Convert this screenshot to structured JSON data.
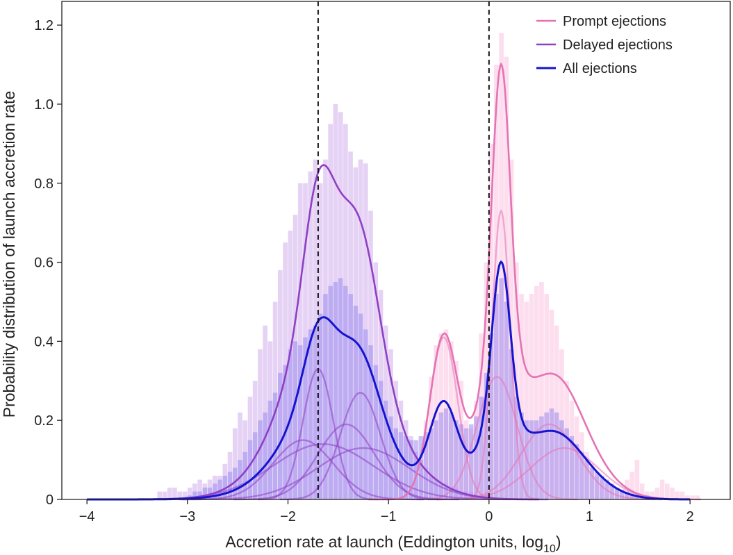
{
  "chart_data": {
    "type": "area",
    "xlabel": "Accretion rate at launch (Eddington units, log",
    "xlabel_sub": "10",
    "xlabel_close": ")",
    "ylabel": "Probability distribution of launch accretion rate",
    "xlim": [
      -4.25,
      2.4
    ],
    "ylim": [
      0,
      1.26
    ],
    "xticks": [
      -4,
      -3,
      -2,
      -1,
      0,
      1,
      2
    ],
    "xtick_labels": [
      "−4",
      "−3",
      "−2",
      "−1",
      "0",
      "1",
      "2"
    ],
    "yticks": [
      0,
      0.2,
      0.4,
      0.6,
      0.8,
      1.0,
      1.2
    ],
    "ytick_labels": [
      "0",
      "0.2",
      "0.4",
      "0.6",
      "0.8",
      "1.0",
      "1.2"
    ],
    "vlines": [
      -1.7,
      0
    ],
    "legend_position": "top-right",
    "colors": {
      "prompt": "#e573b4",
      "delayed": "#8e3fc4",
      "all": "#1414cf",
      "prompt_fill": "#fbd3e8",
      "delayed_fill": "#dcc3f0",
      "all_fill": "#9f8cf1"
    },
    "series": [
      {
        "name": "Prompt ejections",
        "color": "#e573b4",
        "components": [
          {
            "mu": -0.45,
            "sigma": 0.14,
            "amp": 0.41
          },
          {
            "mu": 0.12,
            "sigma": 0.09,
            "amp": 0.73
          },
          {
            "mu": 0.08,
            "sigma": 0.2,
            "amp": 0.31
          },
          {
            "mu": 0.6,
            "sigma": 0.28,
            "amp": 0.19
          },
          {
            "mu": 0.75,
            "sigma": 0.34,
            "amp": 0.13
          }
        ]
      },
      {
        "name": "Delayed ejections",
        "color": "#8e3fc4",
        "components": [
          {
            "mu": -1.7,
            "sigma": 0.15,
            "amp": 0.33
          },
          {
            "mu": -1.85,
            "sigma": 0.3,
            "amp": 0.15
          },
          {
            "mu": -1.65,
            "sigma": 0.5,
            "amp": 0.14
          },
          {
            "mu": -1.28,
            "sigma": 0.2,
            "amp": 0.27
          },
          {
            "mu": -1.42,
            "sigma": 0.28,
            "amp": 0.19
          },
          {
            "mu": -1.25,
            "sigma": 0.46,
            "amp": 0.13
          }
        ]
      },
      {
        "name": "All ejections",
        "color": "#1414cf",
        "note_visible": false
      }
    ],
    "hist_bin_width": 0.05,
    "histograms": {
      "prompt": {
        "x": [
          -0.7,
          -0.65,
          -0.6,
          -0.55,
          -0.5,
          -0.45,
          -0.4,
          -0.35,
          -0.3,
          -0.25,
          -0.2,
          -0.15,
          -0.1,
          -0.05,
          0,
          0.05,
          0.1,
          0.15,
          0.2,
          0.25,
          0.3,
          0.35,
          0.4,
          0.45,
          0.5,
          0.55,
          0.6,
          0.65,
          0.7,
          0.75,
          0.8,
          0.85,
          0.9,
          0.95,
          1.0,
          1.05,
          1.1,
          1.15,
          1.2,
          1.25,
          1.3,
          1.35,
          1.4,
          1.45,
          1.5,
          1.55,
          1.6,
          1.65,
          1.7,
          1.75,
          1.8,
          1.85,
          1.9,
          1.95,
          2.0,
          2.05
        ],
        "y": [
          0.1,
          0.2,
          0.31,
          0.39,
          0.42,
          0.43,
          0.4,
          0.35,
          0.3,
          0.2,
          0.18,
          0.25,
          0.42,
          0.6,
          0.9,
          1.1,
          1.18,
          1.12,
          0.86,
          0.6,
          0.52,
          0.5,
          0.52,
          0.54,
          0.55,
          0.52,
          0.48,
          0.44,
          0.38,
          0.3,
          0.25,
          0.21,
          0.17,
          0.12,
          0.09,
          0.06,
          0.05,
          0.04,
          0.035,
          0.03,
          0.025,
          0.05,
          0.07,
          0.1,
          0.04,
          0.02,
          0.02,
          0.03,
          0.05,
          0.04,
          0.03,
          0.02,
          0.02,
          0.01,
          0.01,
          0.01
        ]
      },
      "delayed": {
        "x": [
          -3.3,
          -3.25,
          -3.2,
          -3.15,
          -3.1,
          -3.05,
          -3.0,
          -2.95,
          -2.9,
          -2.85,
          -2.8,
          -2.75,
          -2.7,
          -2.65,
          -2.6,
          -2.55,
          -2.5,
          -2.45,
          -2.4,
          -2.35,
          -2.3,
          -2.25,
          -2.2,
          -2.15,
          -2.1,
          -2.05,
          -2.0,
          -1.95,
          -1.9,
          -1.85,
          -1.8,
          -1.75,
          -1.7,
          -1.65,
          -1.6,
          -1.55,
          -1.5,
          -1.45,
          -1.4,
          -1.35,
          -1.3,
          -1.25,
          -1.2,
          -1.15,
          -1.1,
          -1.05,
          -1.0,
          -0.95,
          -0.9,
          -0.85,
          -0.8,
          -0.75,
          -0.7,
          -0.65,
          -0.6,
          -0.55,
          -0.5,
          -0.45,
          -0.4,
          -0.35,
          -0.3,
          -0.25,
          -0.2,
          -0.15,
          -0.1,
          -0.05,
          0
        ],
        "y": [
          0.02,
          0.02,
          0.03,
          0.03,
          0.02,
          0.02,
          0.03,
          0.04,
          0.05,
          0.04,
          0.05,
          0.06,
          0.06,
          0.09,
          0.12,
          0.18,
          0.22,
          0.2,
          0.26,
          0.3,
          0.38,
          0.44,
          0.4,
          0.5,
          0.58,
          0.65,
          0.68,
          0.72,
          0.8,
          0.8,
          0.83,
          0.86,
          0.8,
          0.86,
          0.95,
          1.0,
          0.98,
          0.95,
          0.88,
          0.84,
          0.86,
          0.85,
          0.73,
          0.6,
          0.53,
          0.44,
          0.38,
          0.3,
          0.25,
          0.2,
          0.16,
          0.12,
          0.1,
          0.08,
          0.06,
          0.05,
          0.04,
          0.04,
          0.03,
          0.03,
          0.02,
          0.02,
          0.02,
          0.01,
          0.01,
          0.01,
          0.01
        ]
      },
      "all": {
        "x": [
          -3.0,
          -2.95,
          -2.9,
          -2.85,
          -2.8,
          -2.75,
          -2.7,
          -2.65,
          -2.6,
          -2.55,
          -2.5,
          -2.45,
          -2.4,
          -2.35,
          -2.3,
          -2.25,
          -2.2,
          -2.15,
          -2.1,
          -2.05,
          -2.0,
          -1.95,
          -1.9,
          -1.85,
          -1.8,
          -1.75,
          -1.7,
          -1.65,
          -1.6,
          -1.55,
          -1.5,
          -1.45,
          -1.4,
          -1.35,
          -1.3,
          -1.25,
          -1.2,
          -1.15,
          -1.1,
          -1.05,
          -1.0,
          -0.95,
          -0.9,
          -0.85,
          -0.8,
          -0.75,
          -0.7,
          -0.65,
          -0.6,
          -0.55,
          -0.5,
          -0.45,
          -0.4,
          -0.35,
          -0.3,
          -0.25,
          -0.2,
          -0.15,
          -0.1,
          -0.05,
          0,
          0.05,
          0.1,
          0.15,
          0.2,
          0.25,
          0.3,
          0.35,
          0.4,
          0.45,
          0.5,
          0.55,
          0.6,
          0.65,
          0.7,
          0.75,
          0.8,
          0.85,
          0.9,
          0.95,
          1.0,
          1.05,
          1.1,
          1.15,
          1.2,
          1.25,
          1.3,
          1.35,
          1.4,
          1.45,
          1.5,
          1.55,
          1.6
        ],
        "y": [
          0.01,
          0.02,
          0.02,
          0.03,
          0.03,
          0.04,
          0.05,
          0.06,
          0.07,
          0.08,
          0.1,
          0.12,
          0.15,
          0.17,
          0.2,
          0.22,
          0.25,
          0.27,
          0.32,
          0.34,
          0.38,
          0.4,
          0.39,
          0.41,
          0.43,
          0.44,
          0.47,
          0.52,
          0.54,
          0.55,
          0.56,
          0.54,
          0.52,
          0.49,
          0.47,
          0.43,
          0.39,
          0.34,
          0.3,
          0.25,
          0.21,
          0.18,
          0.17,
          0.16,
          0.15,
          0.15,
          0.16,
          0.17,
          0.18,
          0.2,
          0.22,
          0.23,
          0.22,
          0.2,
          0.19,
          0.18,
          0.19,
          0.21,
          0.26,
          0.32,
          0.42,
          0.52,
          0.56,
          0.5,
          0.38,
          0.26,
          0.22,
          0.2,
          0.2,
          0.2,
          0.21,
          0.22,
          0.23,
          0.22,
          0.2,
          0.18,
          0.16,
          0.14,
          0.12,
          0.1,
          0.08,
          0.07,
          0.06,
          0.05,
          0.04,
          0.03,
          0.025,
          0.02,
          0.015,
          0.01,
          0.01,
          0.01,
          0.005
        ]
      }
    }
  }
}
